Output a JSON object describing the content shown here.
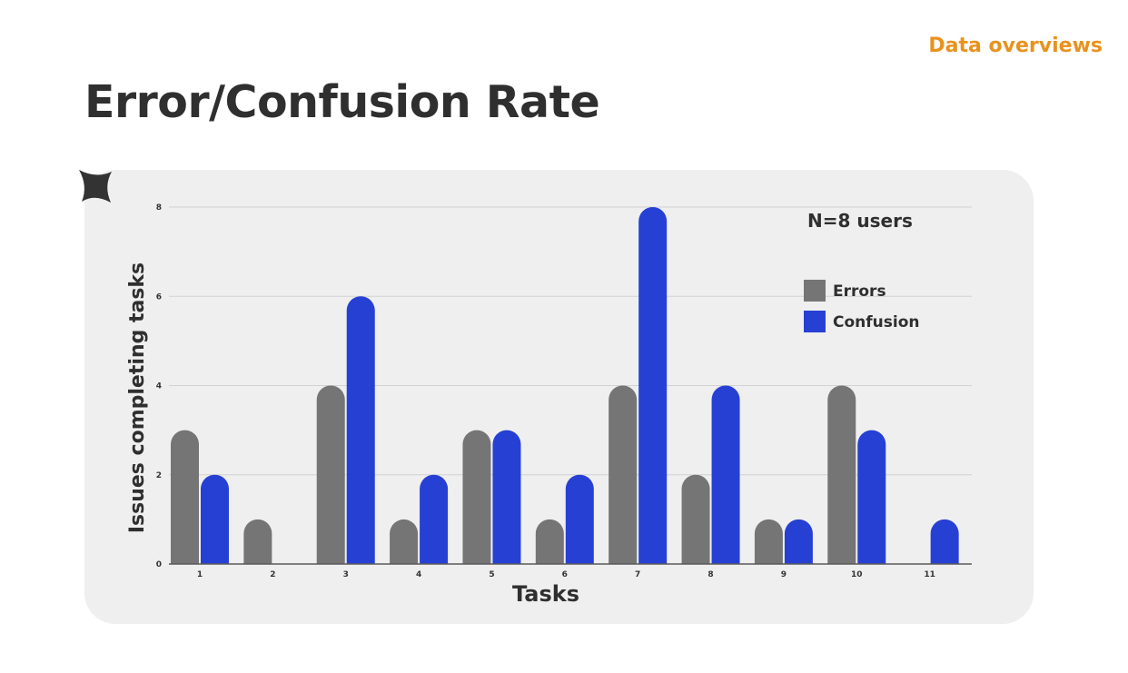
{
  "header": {
    "section_tag": "Data overviews",
    "title": "Error/Confusion Rate"
  },
  "decor": {
    "icon": "sparkle-icon",
    "color": "#333333"
  },
  "chart_data": {
    "type": "bar",
    "title": "",
    "annotation": "N=8 users",
    "xlabel": "Tasks",
    "ylabel": "Issues completing tasks",
    "ylim": [
      0,
      8
    ],
    "yticks": [
      0,
      2,
      4,
      6,
      8
    ],
    "grid": true,
    "legend_position": "top-right",
    "categories": [
      "1",
      "2",
      "3",
      "4",
      "5",
      "6",
      "7",
      "8",
      "9",
      "10",
      "11"
    ],
    "series": [
      {
        "name": "Errors",
        "color": "#757575",
        "values": [
          3,
          1,
          4,
          1,
          3,
          1,
          4,
          2,
          1,
          4,
          0
        ]
      },
      {
        "name": "Confusion",
        "color": "#2740d4",
        "values": [
          2,
          0,
          6,
          2,
          3,
          2,
          8,
          4,
          1,
          3,
          1
        ]
      }
    ]
  }
}
